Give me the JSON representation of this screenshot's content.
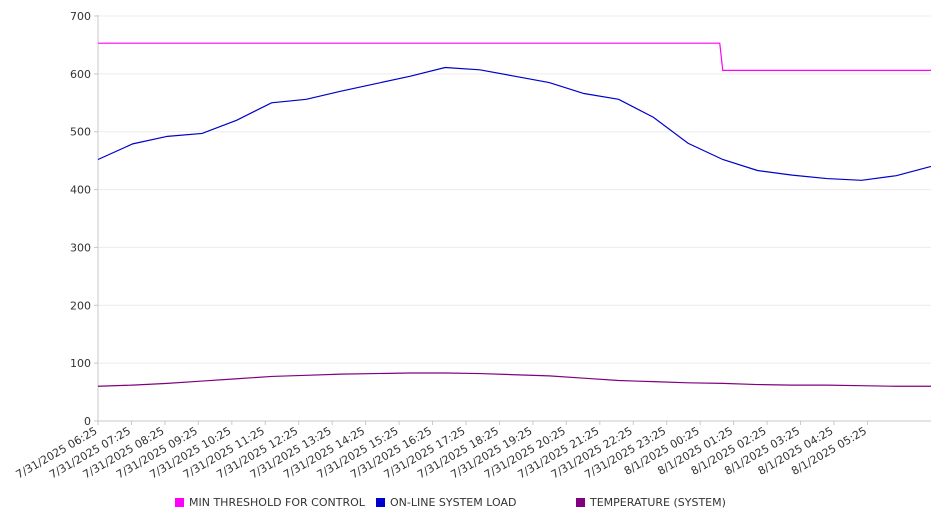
{
  "chart_data": {
    "type": "line",
    "y_ticks": [
      0,
      100,
      200,
      300,
      400,
      500,
      600,
      700
    ],
    "ylim": [
      0,
      700
    ],
    "grid": true,
    "x_tick_labels": [
      "7/31/2025 06:25",
      "7/31/2025 07:25",
      "7/31/2025 08:25",
      "7/31/2025 09:25",
      "7/31/2025 10:25",
      "7/31/2025 11:25",
      "7/31/2025 12:25",
      "7/31/2025 13:25",
      "7/31/2025 14:25",
      "7/31/2025 15:25",
      "7/31/2025 16:25",
      "7/31/2025 17:25",
      "7/31/2025 18:25",
      "7/31/2025 19:25",
      "7/31/2025 20:25",
      "7/31/2025 21:25",
      "7/31/2025 22:25",
      "7/31/2025 23:25",
      "8/1/2025 00:25",
      "8/1/2025 01:25",
      "8/1/2025 02:25",
      "8/1/2025 03:25",
      "8/1/2025 04:25",
      "8/1/2025 05:25"
    ],
    "x": [
      "7/31/2025 06:25",
      "7/31/2025 07:25",
      "7/31/2025 08:25",
      "7/31/2025 09:25",
      "7/31/2025 10:25",
      "7/31/2025 11:25",
      "7/31/2025 12:25",
      "7/31/2025 13:25",
      "7/31/2025 14:25",
      "7/31/2025 15:25",
      "7/31/2025 16:25",
      "7/31/2025 17:25",
      "7/31/2025 18:25",
      "7/31/2025 19:25",
      "7/31/2025 20:25",
      "7/31/2025 21:25",
      "7/31/2025 22:25",
      "7/31/2025 23:25",
      "8/1/2025 00:25",
      "8/1/2025 01:25",
      "8/1/2025 02:25",
      "8/1/2025 03:25",
      "8/1/2025 04:25",
      "8/1/2025 05:25",
      "8/1/2025 06:20"
    ],
    "legend_placement": "bottom",
    "series": [
      {
        "name": "MIN THRESHOLD FOR CONTROL",
        "color": "#ff00ff",
        "values": [
          653,
          653,
          653,
          653,
          653,
          653,
          653,
          653,
          653,
          653,
          653,
          653,
          653,
          653,
          653,
          653,
          653,
          653,
          606,
          606,
          606,
          606,
          606,
          606,
          606
        ]
      },
      {
        "name": "ON-LINE SYSTEM LOAD",
        "color": "#0000cc",
        "values": [
          452,
          479,
          492,
          497,
          520,
          550,
          556,
          570,
          583,
          596,
          611,
          607,
          596,
          585,
          566,
          556,
          525,
          480,
          452,
          433,
          425,
          419,
          416,
          424,
          440
        ]
      },
      {
        "name": "TEMPERATURE (SYSTEM)",
        "color": "#800080",
        "values": [
          60,
          62,
          65,
          69,
          73,
          77,
          79,
          81,
          82,
          83,
          83,
          82,
          80,
          78,
          74,
          70,
          68,
          66,
          65,
          63,
          62,
          62,
          61,
          60,
          60
        ]
      }
    ]
  }
}
